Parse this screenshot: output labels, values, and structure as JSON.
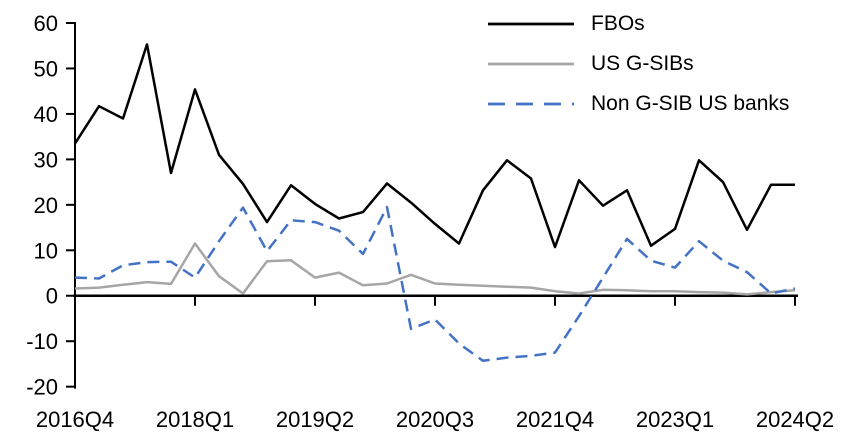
{
  "page": {
    "background": "#ffffff"
  },
  "chart_data": {
    "type": "line",
    "title": "",
    "xlabel": "",
    "ylabel": "",
    "grid": false,
    "legend_position": "top-right",
    "axis_color": "#000000",
    "ylim": [
      -20,
      60
    ],
    "y_tick_step": 10,
    "y_tick_labels": [
      "60",
      "50",
      "40",
      "30",
      "20",
      "10",
      "0",
      "-10",
      "-20"
    ],
    "x_tick_interval": 5,
    "x_tick_labels": [
      "2016Q4",
      "2018Q1",
      "2019Q2",
      "2020Q3",
      "2021Q4",
      "2023Q1",
      "2024Q2"
    ],
    "categories": [
      "2016Q4",
      "2017Q1",
      "2017Q2",
      "2017Q3",
      "2017Q4",
      "2018Q1",
      "2018Q2",
      "2018Q3",
      "2018Q4",
      "2019Q1",
      "2019Q2",
      "2019Q3",
      "2019Q4",
      "2020Q1",
      "2020Q2",
      "2020Q3",
      "2020Q4",
      "2021Q1",
      "2021Q2",
      "2021Q3",
      "2021Q4",
      "2022Q1",
      "2022Q2",
      "2022Q3",
      "2022Q4",
      "2023Q1",
      "2023Q2",
      "2023Q3",
      "2023Q4",
      "2024Q1",
      "2024Q2"
    ],
    "series": [
      {
        "name": "FBOs",
        "color": "#000000",
        "style": "solid",
        "values": [
          33.5,
          41.7,
          39.0,
          55.3,
          27.0,
          45.4,
          31.0,
          24.6,
          16.2,
          24.3,
          20.2,
          17.0,
          18.4,
          24.7,
          20.5,
          15.8,
          11.5,
          23.2,
          29.8,
          25.8,
          10.7,
          25.4,
          19.8,
          23.2,
          11.0,
          14.7,
          29.8,
          25.0,
          14.5,
          24.4,
          24.4
        ]
      },
      {
        "name": "US G-SIBs",
        "color": "#a6a6a6",
        "style": "solid",
        "values": [
          1.6,
          1.8,
          2.4,
          3.0,
          2.6,
          11.5,
          4.3,
          0.5,
          7.6,
          7.8,
          4.0,
          5.1,
          2.3,
          2.7,
          4.6,
          2.7,
          2.4,
          2.2,
          2.0,
          1.8,
          1.0,
          0.5,
          1.3,
          1.2,
          1.0,
          1.0,
          0.8,
          0.7,
          0.3,
          0.8,
          1.2
        ]
      },
      {
        "name": "Non G-SIB US banks",
        "color": "#4472c4",
        "style": "dashed",
        "values": [
          4.0,
          3.8,
          6.7,
          7.4,
          7.5,
          4.0,
          12.0,
          19.4,
          9.8,
          16.6,
          16.2,
          14.3,
          9.2,
          19.5,
          -7.3,
          -5.2,
          -10.5,
          -14.3,
          -13.6,
          -13.2,
          -12.5,
          -4.5,
          4.0,
          12.5,
          7.7,
          6.2,
          12.0,
          7.7,
          5.2,
          0.5,
          1.6
        ]
      }
    ]
  }
}
